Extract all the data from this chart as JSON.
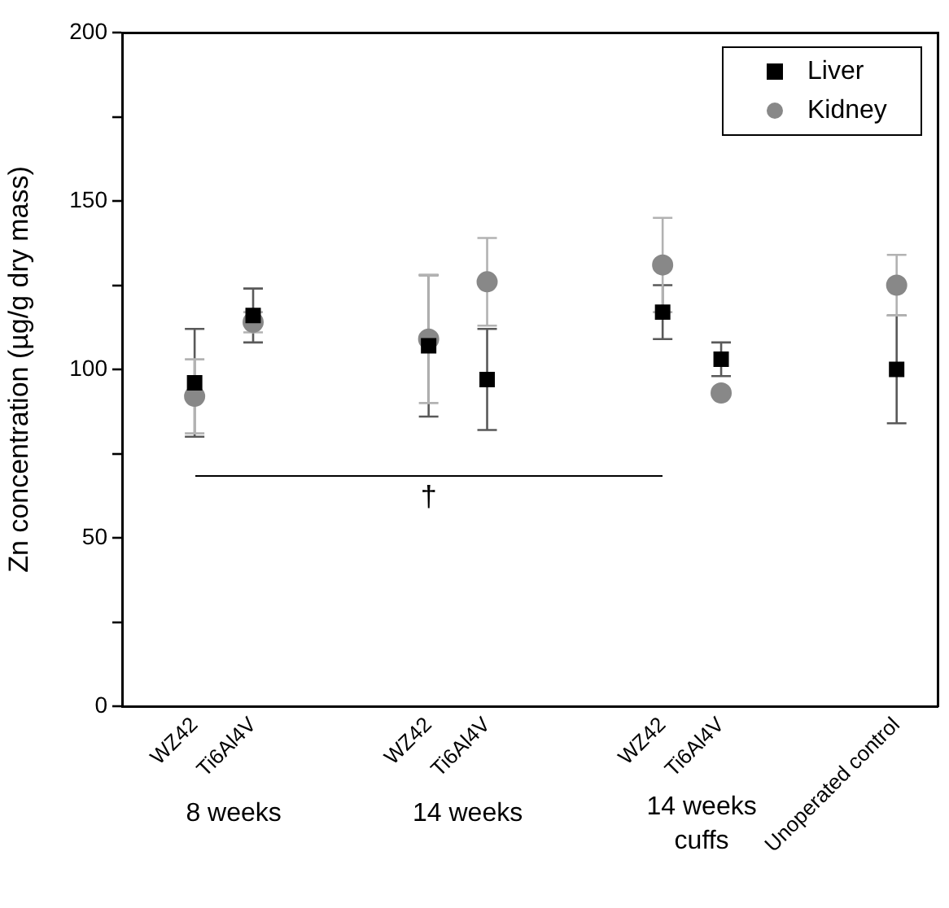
{
  "chart_data": {
    "type": "scatter",
    "ylabel": "Zn concentration (µg/g dry mass)",
    "categories": [
      "WZ42",
      "Ti6Al4V",
      null,
      null,
      "WZ42",
      "Ti6Al4V",
      null,
      null,
      "WZ42",
      "Ti6Al4V",
      null,
      null,
      "Unoperated control"
    ],
    "series": [
      {
        "name": "Liver",
        "color": "#000000",
        "marker": "square",
        "values": [
          96,
          116,
          null,
          null,
          107,
          97,
          null,
          null,
          117,
          103,
          null,
          null,
          100
        ],
        "errors": [
          16,
          8,
          null,
          null,
          21,
          15,
          null,
          null,
          8,
          5,
          null,
          null,
          16
        ]
      },
      {
        "name": "Kidney",
        "color": "#888888",
        "marker": "circle",
        "values": [
          92,
          114,
          null,
          null,
          109,
          126,
          null,
          null,
          131,
          93,
          null,
          null,
          125
        ],
        "errors": [
          11,
          3,
          null,
          null,
          19,
          13,
          null,
          null,
          14,
          null,
          null,
          null,
          9
        ]
      }
    ],
    "ylim": [
      0,
      200
    ],
    "yticks": [
      0,
      {
        "value": 25,
        "label": null
      },
      50,
      {
        "value": 75,
        "label": null
      },
      100,
      {
        "value": 125,
        "label": null
      },
      150,
      {
        "value": 175,
        "label": null
      },
      200
    ],
    "grid": false,
    "legend": "top right",
    "annotations": [
      "8 weeks",
      "14 weeks",
      "14 weeks\ncuffs",
      "†"
    ]
  }
}
